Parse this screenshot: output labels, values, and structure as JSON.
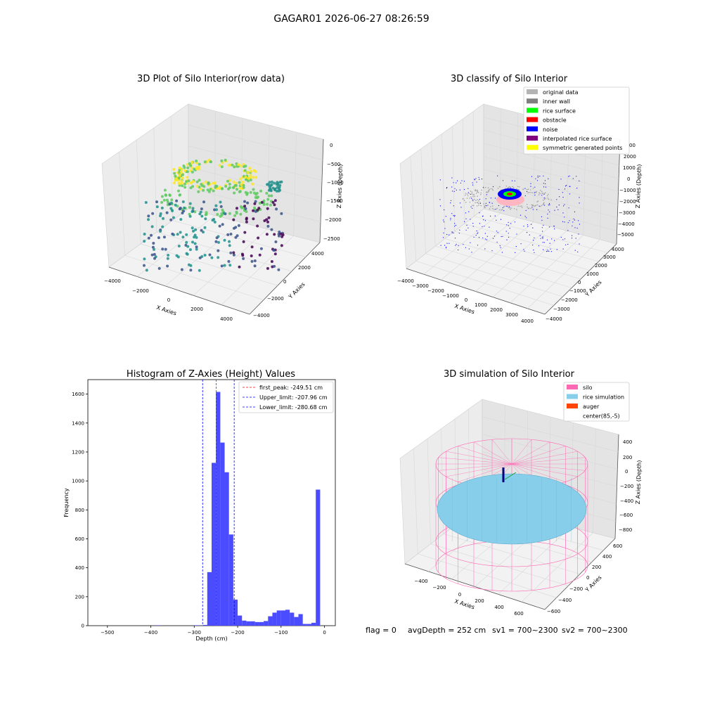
{
  "suptitle": "GAGAR01 2026-06-27 08:26:59",
  "status_line": {
    "flag": "flag = 0",
    "avg_depth": "avgDepth = 252 cm",
    "sv1": "sv1 = 700~2300",
    "sv2": "sv2 = 700~2300"
  },
  "panels": {
    "raw": {
      "title": "3D Plot of Silo Interior(row data)",
      "xlabel": "X Axies",
      "ylabel": "Y Axies",
      "zlabel": "Z Axies (Depth)",
      "xticks": [
        "−4000",
        "−2000",
        "0",
        "2000",
        "4000"
      ],
      "yticks": [
        "−4000",
        "−2000",
        "0",
        "2000",
        "4000"
      ],
      "zticks": [
        "0",
        "−500",
        "−1000",
        "−1500",
        "−2000",
        "−2500"
      ],
      "colormap": [
        "#440154",
        "#3b528b",
        "#21918c",
        "#5ec962",
        "#fde725"
      ]
    },
    "classify": {
      "title": "3D classify of Silo Interior",
      "xlabel": "X Axies",
      "ylabel": "Y Axies",
      "zlabel": "Z Axies (Depth)",
      "xticks": [
        "−4000",
        "−3000",
        "−2000",
        "−1000",
        "0",
        "1000",
        "2000",
        "3000",
        "4000"
      ],
      "yticks": [
        "−4000",
        "−3000",
        "−2000",
        "−1000",
        "0",
        "1000",
        "2000",
        "3000",
        "4000"
      ],
      "zticks": [
        "2000",
        "1000",
        "0",
        "−1000",
        "−2000",
        "−3000",
        "−4000",
        "−5000"
      ],
      "zticks_partial": [
        "00"
      ],
      "legend": [
        {
          "label": "original data",
          "color": "#b4b4b4"
        },
        {
          "label": "inner wall",
          "color": "#808080"
        },
        {
          "label": "rice surface",
          "color": "#00ff00"
        },
        {
          "label": "obstacle",
          "color": "#ff0000"
        },
        {
          "label": "noise",
          "color": "#0000ff"
        },
        {
          "label": "interpolated rice surface",
          "color": "#800080"
        },
        {
          "label": "symmetric generated points",
          "color": "#ffff00"
        }
      ]
    },
    "simulation": {
      "title": "3D simulation of Silo Interior",
      "xlabel": "X Axies",
      "ylabel": "Y Axies",
      "zlabel": "Z Axies (Depth)",
      "xticks": [
        "−400",
        "−200",
        "0",
        "200",
        "400",
        "600"
      ],
      "yticks": [
        "−600",
        "−400",
        "−200",
        "0",
        "200",
        "400",
        "600"
      ],
      "zticks": [
        "400",
        "200",
        "0",
        "−200",
        "−400",
        "−600",
        "−800"
      ],
      "legend": [
        {
          "label": "silo",
          "color": "#ff69b4"
        },
        {
          "label": "rice simulation",
          "color": "#87ceeb"
        },
        {
          "label": "auger",
          "color": "#ff4500"
        },
        {
          "label": "center(85,-5)",
          "color": ""
        }
      ]
    }
  },
  "chart_data": {
    "type": "bar",
    "title": "Histogram of Z-Axies (Height) Values",
    "xlabel": "Depth (cm)",
    "ylabel": "Frequency",
    "xlim": [
      -545,
      25
    ],
    "ylim": [
      0,
      1700
    ],
    "xticks": [
      -500,
      -400,
      -300,
      -200,
      -100,
      0
    ],
    "yticks": [
      0,
      200,
      400,
      600,
      800,
      1000,
      1200,
      1400,
      1600
    ],
    "bar_color": "#4b4bff",
    "bin_width": 10,
    "bins": [
      {
        "x": -390,
        "value": 3
      },
      {
        "x": -300,
        "value": 3
      },
      {
        "x": -280,
        "value": 5
      },
      {
        "x": -270,
        "value": 370
      },
      {
        "x": -260,
        "value": 1125
      },
      {
        "x": -250,
        "value": 1615
      },
      {
        "x": -240,
        "value": 1265
      },
      {
        "x": -230,
        "value": 1060
      },
      {
        "x": -220,
        "value": 630
      },
      {
        "x": -210,
        "value": 180
      },
      {
        "x": -200,
        "value": 70
      },
      {
        "x": -190,
        "value": 35
      },
      {
        "x": -180,
        "value": 30
      },
      {
        "x": -170,
        "value": 30
      },
      {
        "x": -160,
        "value": 25
      },
      {
        "x": -150,
        "value": 25
      },
      {
        "x": -140,
        "value": 32
      },
      {
        "x": -130,
        "value": 65
      },
      {
        "x": -120,
        "value": 90
      },
      {
        "x": -110,
        "value": 105
      },
      {
        "x": -100,
        "value": 105
      },
      {
        "x": -90,
        "value": 110
      },
      {
        "x": -80,
        "value": 90
      },
      {
        "x": -70,
        "value": 60
      },
      {
        "x": -60,
        "value": 80
      },
      {
        "x": -50,
        "value": 12
      },
      {
        "x": -40,
        "value": 12
      },
      {
        "x": -30,
        "value": 20
      },
      {
        "x": -20,
        "value": 940
      }
    ],
    "vlines": [
      {
        "x": -249.51,
        "label": "first_peak: -249.51 cm",
        "color": "#ff0000"
      },
      {
        "x": -207.96,
        "label": "Upper_limit: -207.96 cm",
        "color": "#0000ff"
      },
      {
        "x": -280.68,
        "label": "Lower_limit: -280.68 cm",
        "color": "#0000ff"
      }
    ]
  }
}
